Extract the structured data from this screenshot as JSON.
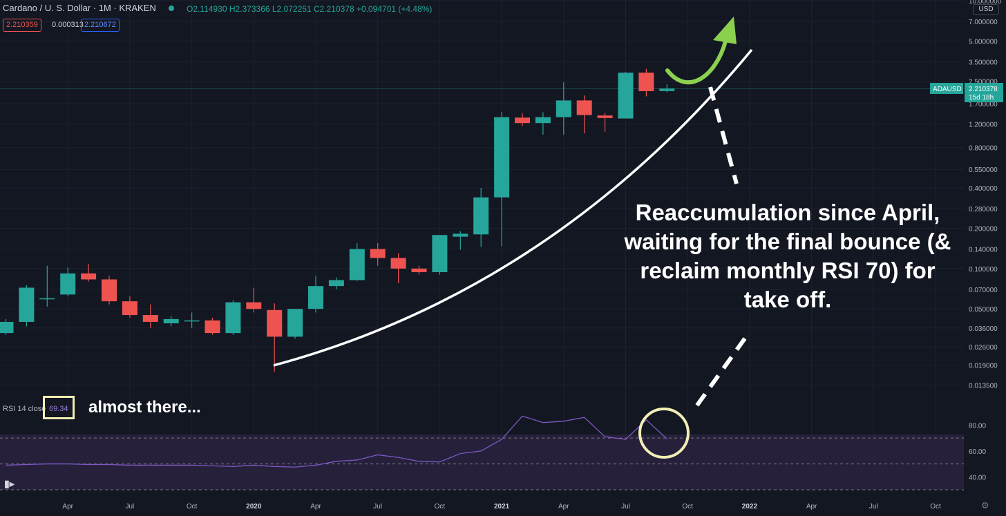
{
  "header": {
    "title": "Cardano / U. S. Dollar · 1M · KRAKEN",
    "ohlc": "O2.114930  H2.373366  L2.072251  C2.210378  +0.094701 (+4.48%)",
    "bid": "2.210359",
    "spread": "0.000313",
    "ask": "2.210672",
    "currency_button": "USD"
  },
  "price_tag": {
    "symbol": "ADAUSD",
    "price": "2.210378",
    "countdown": "15d 18h"
  },
  "rsi": {
    "label": "RSI 14 close",
    "value": "69.34"
  },
  "annotations": {
    "small": "almost there...",
    "main": "Reaccumulation since April, waiting for the final bounce (& reclaim monthly RSI 70) for take off."
  },
  "colors": {
    "background": "#131722",
    "up": "#26a69a",
    "down": "#ef5350",
    "rsi_line": "#7e57c2",
    "rsi_band": "#2a2240",
    "annotation_circle": "#f3eeb4",
    "arrow": "#8bd14f",
    "trendline": "#ffffff"
  },
  "icons": {
    "logo": "tradingview-logo-icon",
    "settings": "gear-icon"
  },
  "chart_data": [
    {
      "type": "candlestick",
      "title": "Cardano / U. S. Dollar · 1M · KRAKEN",
      "y_scale": "log",
      "ylim": [
        0.0107,
        10.0
      ],
      "y_ticks": [
        "10.000000",
        "7.000000",
        "5.000000",
        "3.500000",
        "2.500000",
        "1.700000",
        "1.200000",
        "0.800000",
        "0.550000",
        "0.400000",
        "0.280000",
        "0.200000",
        "0.140000",
        "0.100000",
        "0.070000",
        "0.050000",
        "0.036000",
        "0.026000",
        "0.019000",
        "0.013500"
      ],
      "x_ticks": [
        "Apr",
        "Jul",
        "Oct",
        "2020",
        "Apr",
        "Jul",
        "Oct",
        "2021",
        "Apr",
        "Jul",
        "Oct",
        "2022",
        "Apr",
        "Jul",
        "Oct"
      ],
      "x_start": "2019-01",
      "candles": [
        {
          "date": "2019-01",
          "o": 0.033,
          "h": 0.042,
          "l": 0.032,
          "c": 0.04
        },
        {
          "date": "2019-02",
          "o": 0.04,
          "h": 0.075,
          "l": 0.037,
          "c": 0.072
        },
        {
          "date": "2019-03",
          "o": 0.06,
          "h": 0.105,
          "l": 0.052,
          "c": 0.06
        },
        {
          "date": "2019-04",
          "o": 0.064,
          "h": 0.102,
          "l": 0.062,
          "c": 0.092
        },
        {
          "date": "2019-05",
          "o": 0.092,
          "h": 0.108,
          "l": 0.08,
          "c": 0.083
        },
        {
          "date": "2019-06",
          "o": 0.083,
          "h": 0.088,
          "l": 0.054,
          "c": 0.057
        },
        {
          "date": "2019-07",
          "o": 0.057,
          "h": 0.062,
          "l": 0.043,
          "c": 0.045
        },
        {
          "date": "2019-08",
          "o": 0.045,
          "h": 0.054,
          "l": 0.036,
          "c": 0.04
        },
        {
          "date": "2019-09",
          "o": 0.039,
          "h": 0.044,
          "l": 0.037,
          "c": 0.042
        },
        {
          "date": "2019-10",
          "o": 0.041,
          "h": 0.047,
          "l": 0.036,
          "c": 0.041
        },
        {
          "date": "2019-11",
          "o": 0.041,
          "h": 0.043,
          "l": 0.032,
          "c": 0.033
        },
        {
          "date": "2019-12",
          "o": 0.033,
          "h": 0.058,
          "l": 0.032,
          "c": 0.056
        },
        {
          "date": "2020-01",
          "o": 0.056,
          "h": 0.072,
          "l": 0.047,
          "c": 0.05
        },
        {
          "date": "2020-02",
          "o": 0.049,
          "h": 0.055,
          "l": 0.017,
          "c": 0.031
        },
        {
          "date": "2020-03",
          "o": 0.031,
          "h": 0.05,
          "l": 0.03,
          "c": 0.05
        },
        {
          "date": "2020-04",
          "o": 0.05,
          "h": 0.088,
          "l": 0.047,
          "c": 0.074
        },
        {
          "date": "2020-05",
          "o": 0.074,
          "h": 0.086,
          "l": 0.07,
          "c": 0.082
        },
        {
          "date": "2020-06",
          "o": 0.082,
          "h": 0.155,
          "l": 0.081,
          "c": 0.14
        },
        {
          "date": "2020-07",
          "o": 0.14,
          "h": 0.155,
          "l": 0.105,
          "c": 0.12
        },
        {
          "date": "2020-08",
          "o": 0.12,
          "h": 0.13,
          "l": 0.078,
          "c": 0.1
        },
        {
          "date": "2020-09",
          "o": 0.1,
          "h": 0.105,
          "l": 0.09,
          "c": 0.094
        },
        {
          "date": "2020-10",
          "o": 0.094,
          "h": 0.175,
          "l": 0.09,
          "c": 0.178
        },
        {
          "date": "2020-11",
          "o": 0.173,
          "h": 0.19,
          "l": 0.138,
          "c": 0.182
        },
        {
          "date": "2020-12",
          "o": 0.18,
          "h": 0.4,
          "l": 0.145,
          "c": 0.34
        },
        {
          "date": "2021-01",
          "o": 0.34,
          "h": 1.48,
          "l": 0.147,
          "c": 1.35
        },
        {
          "date": "2021-02",
          "o": 1.34,
          "h": 1.45,
          "l": 1.16,
          "c": 1.22
        },
        {
          "date": "2021-03",
          "o": 1.22,
          "h": 1.47,
          "l": 1.0,
          "c": 1.35
        },
        {
          "date": "2021-04",
          "o": 1.35,
          "h": 2.46,
          "l": 1.0,
          "c": 1.8
        },
        {
          "date": "2021-05",
          "o": 1.8,
          "h": 1.96,
          "l": 1.02,
          "c": 1.4
        },
        {
          "date": "2021-06",
          "o": 1.39,
          "h": 1.45,
          "l": 1.05,
          "c": 1.33
        },
        {
          "date": "2021-07",
          "o": 1.32,
          "h": 2.95,
          "l": 1.32,
          "c": 2.9
        },
        {
          "date": "2021-08",
          "o": 2.9,
          "h": 3.1,
          "l": 1.93,
          "c": 2.11
        },
        {
          "date": "2021-09",
          "o": 2.1149,
          "h": 2.3734,
          "l": 2.0723,
          "c": 2.2104
        }
      ]
    },
    {
      "type": "line",
      "title": "RSI 14 close",
      "ylim": [
        30,
        100
      ],
      "y_ticks": [
        "80.00",
        "60.00",
        "40.00"
      ],
      "x_start": "2019-01",
      "series": [
        {
          "values": [
            49,
            49.5,
            50,
            50,
            49.5,
            49.5,
            49,
            49,
            49,
            49,
            48.5,
            48,
            49,
            48,
            47.5,
            49,
            52,
            53,
            57,
            55,
            52,
            51.5,
            58,
            60,
            69,
            87,
            82,
            83,
            86,
            71,
            69,
            84,
            69.34
          ]
        }
      ]
    }
  ]
}
